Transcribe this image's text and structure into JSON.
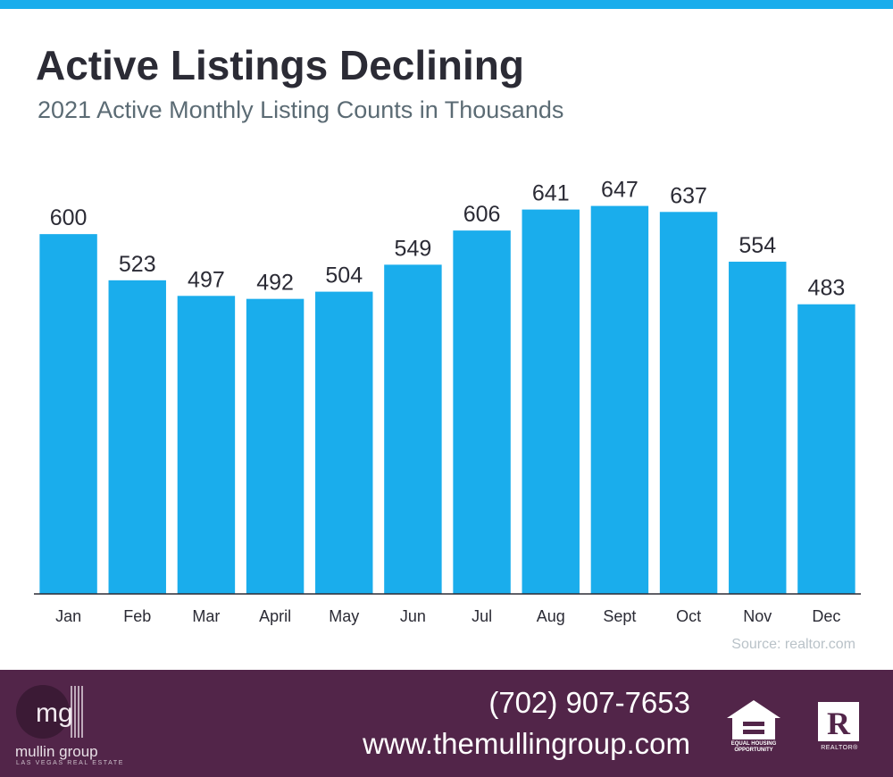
{
  "header": {
    "title": "Active Listings Declining",
    "subtitle": "2021 Active Monthly Listing Counts in Thousands"
  },
  "colors": {
    "accent": "#1aadec",
    "footer_bg": "#522549",
    "title": "#2b2b35",
    "subtitle": "#5b6b74",
    "source": "#b9c2c8"
  },
  "chart_data": {
    "type": "bar",
    "categories": [
      "Jan",
      "Feb",
      "Mar",
      "April",
      "May",
      "Jun",
      "Jul",
      "Aug",
      "Sept",
      "Oct",
      "Nov",
      "Dec"
    ],
    "values": [
      600,
      523,
      497,
      492,
      504,
      549,
      606,
      641,
      647,
      637,
      554,
      483
    ],
    "title": "Active Listings Declining",
    "subtitle": "2021 Active Monthly Listing Counts in Thousands",
    "xlabel": "",
    "ylabel": "",
    "ylim": [
      0,
      700
    ],
    "grid": false,
    "legend": "none",
    "data_labels": true
  },
  "source": "Source: realtor.com",
  "footer": {
    "logo_mark": "mg",
    "logo_name": "mullin group",
    "logo_tagline": "LAS VEGAS REAL ESTATE",
    "phone": "(702) 907-7653",
    "website": "www.themullingroup.com",
    "eho_label": "EQUAL HOUSING OPPORTUNITY",
    "realtor_label": "REALTOR®",
    "realtor_mark": "R"
  }
}
